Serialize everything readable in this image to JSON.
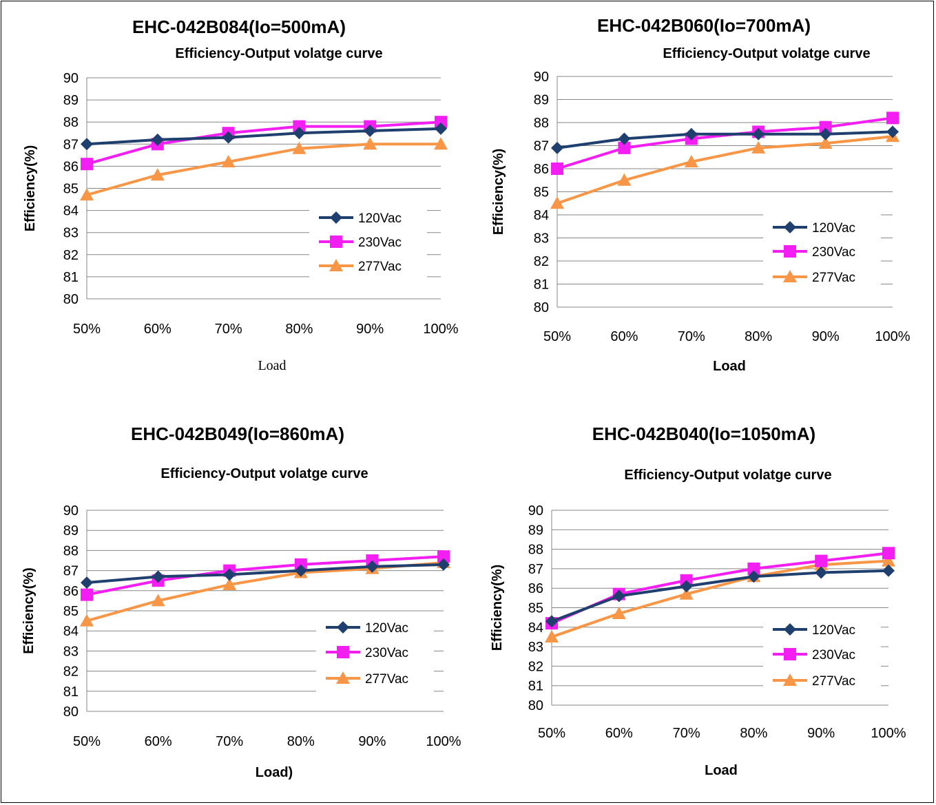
{
  "series_colors": {
    "120Vac": "#1F3F6E",
    "230Vac": "#F21EF2",
    "277Vac": "#F79646"
  },
  "chart_data": [
    {
      "type": "line",
      "title": "EHC-042B084(Io=500mA)",
      "subtitle": "Efficiency-Output volatge curve",
      "xlabel": "Load",
      "ylabel": "Efficiency(%)",
      "categories": [
        "50%",
        "60%",
        "70%",
        "80%",
        "90%",
        "100%"
      ],
      "yticks": [
        "80",
        "81",
        "82",
        "83",
        "84",
        "85",
        "86",
        "87",
        "88",
        "89",
        "90"
      ],
      "ylim": [
        80,
        90
      ],
      "grid": true,
      "legend_position": "right",
      "series": [
        {
          "name": "120Vac",
          "marker": "diamond",
          "values": [
            87.0,
            87.2,
            87.3,
            87.5,
            87.6,
            87.7
          ]
        },
        {
          "name": "230Vac",
          "marker": "square",
          "values": [
            86.1,
            87.0,
            87.5,
            87.8,
            87.8,
            88.0
          ]
        },
        {
          "name": "277Vac",
          "marker": "triangle",
          "values": [
            84.7,
            85.6,
            86.2,
            86.8,
            87.0,
            87.0
          ]
        }
      ]
    },
    {
      "type": "line",
      "title": "EHC-042B060(Io=700mA)",
      "subtitle": "Efficiency-Output volatge curve",
      "xlabel": "Load",
      "ylabel": "Efficiency(%)",
      "categories": [
        "50%",
        "60%",
        "70%",
        "80%",
        "90%",
        "100%"
      ],
      "yticks": [
        "80",
        "81",
        "82",
        "83",
        "84",
        "85",
        "86",
        "87",
        "88",
        "89",
        "90"
      ],
      "ylim": [
        80,
        90
      ],
      "grid": true,
      "legend_position": "right",
      "series": [
        {
          "name": "120Vac",
          "marker": "diamond",
          "values": [
            86.9,
            87.3,
            87.5,
            87.5,
            87.5,
            87.6
          ]
        },
        {
          "name": "230Vac",
          "marker": "square",
          "values": [
            86.0,
            86.9,
            87.3,
            87.6,
            87.8,
            88.2
          ]
        },
        {
          "name": "277Vac",
          "marker": "triangle",
          "values": [
            84.5,
            85.5,
            86.3,
            86.9,
            87.1,
            87.4
          ]
        }
      ]
    },
    {
      "type": "line",
      "title": "EHC-042B049(Io=860mA)",
      "subtitle": "Efficiency-Output volatge curve",
      "xlabel": "Load)",
      "ylabel": "Efficiency(%)",
      "categories": [
        "50%",
        "60%",
        "70%",
        "80%",
        "90%",
        "100%"
      ],
      "yticks": [
        "80",
        "81",
        "82",
        "83",
        "84",
        "85",
        "86",
        "87",
        "88",
        "89",
        "90"
      ],
      "ylim": [
        80,
        90
      ],
      "grid": true,
      "legend_position": "right",
      "series": [
        {
          "name": "120Vac",
          "marker": "diamond",
          "values": [
            86.4,
            86.7,
            86.8,
            87.0,
            87.2,
            87.3
          ]
        },
        {
          "name": "230Vac",
          "marker": "square",
          "values": [
            85.8,
            86.5,
            87.0,
            87.3,
            87.5,
            87.7
          ]
        },
        {
          "name": "277Vac",
          "marker": "triangle",
          "values": [
            84.5,
            85.5,
            86.3,
            86.9,
            87.1,
            87.4
          ]
        }
      ]
    },
    {
      "type": "line",
      "title": "EHC-042B040(Io=1050mA)",
      "subtitle": "Efficiency-Output volatge curve",
      "xlabel": "Load",
      "ylabel": "Efficiency(%)",
      "categories": [
        "50%",
        "60%",
        "70%",
        "80%",
        "90%",
        "100%"
      ],
      "yticks": [
        "80",
        "81",
        "82",
        "83",
        "84",
        "85",
        "86",
        "87",
        "88",
        "89",
        "90"
      ],
      "ylim": [
        80,
        90
      ],
      "grid": true,
      "legend_position": "right",
      "series": [
        {
          "name": "120Vac",
          "marker": "diamond",
          "values": [
            84.3,
            85.6,
            86.1,
            86.6,
            86.8,
            86.9
          ]
        },
        {
          "name": "230Vac",
          "marker": "square",
          "values": [
            84.2,
            85.7,
            86.4,
            87.0,
            87.4,
            87.8
          ]
        },
        {
          "name": "277Vac",
          "marker": "triangle",
          "values": [
            83.5,
            84.7,
            85.7,
            86.6,
            87.2,
            87.4
          ]
        }
      ]
    }
  ]
}
